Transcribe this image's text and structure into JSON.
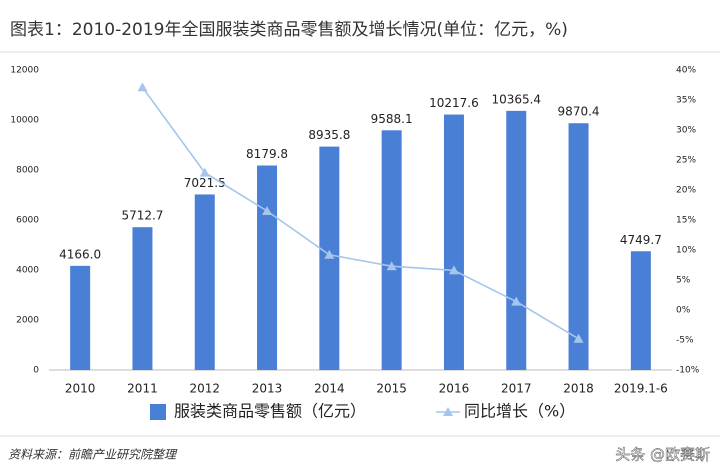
{
  "chart_data": {
    "type": "bar-line",
    "title": "图表1：2010-2019年全国服装类商品零售额及增长情况(单位：亿元，%)",
    "source": "资料来源：前瞻产业研究院整理",
    "watermark": "头条 @欧赛斯",
    "categories": [
      "2010",
      "2011",
      "2012",
      "2013",
      "2014",
      "2015",
      "2016",
      "2017",
      "2018",
      "2019.1-6"
    ],
    "series": [
      {
        "name": "服装类商品零售额（亿元）",
        "color": "#4a7fd6",
        "kind": "bar",
        "values": [
          4166.0,
          5712.7,
          7021.5,
          8179.8,
          8935.8,
          9588.1,
          10217.6,
          10365.4,
          9870.4,
          4749.7
        ],
        "value_labels": [
          "4166.0",
          "5712.7",
          "7021.5",
          "8179.8",
          "8935.8",
          "9588.1",
          "10217.6",
          "10365.4",
          "9870.4",
          "4749.7"
        ]
      },
      {
        "name": "同比增长（%）",
        "color": "#a4c6ec",
        "kind": "line",
        "axis": "y2",
        "values": [
          null,
          37.1,
          22.9,
          16.5,
          9.2,
          7.3,
          6.6,
          1.4,
          -4.8,
          null
        ]
      }
    ],
    "ylim": [
      0,
      12000
    ],
    "yticks": [
      0,
      2000,
      4000,
      6000,
      8000,
      10000,
      12000
    ],
    "y2lim": [
      -10,
      40
    ],
    "y2ticks": [
      {
        "value": -10,
        "label": "-10%"
      },
      {
        "value": -5,
        "label": "-5%"
      },
      {
        "value": 0,
        "label": "0%"
      },
      {
        "value": 5,
        "label": "5%"
      },
      {
        "value": 10,
        "label": "10%"
      },
      {
        "value": 15,
        "label": "15%"
      },
      {
        "value": 20,
        "label": "20%"
      },
      {
        "value": 25,
        "label": "25%"
      },
      {
        "value": 30,
        "label": "30%"
      },
      {
        "value": 35,
        "label": "35%"
      },
      {
        "value": 40,
        "label": "40%"
      }
    ],
    "grid": false,
    "legend": "bottom"
  }
}
